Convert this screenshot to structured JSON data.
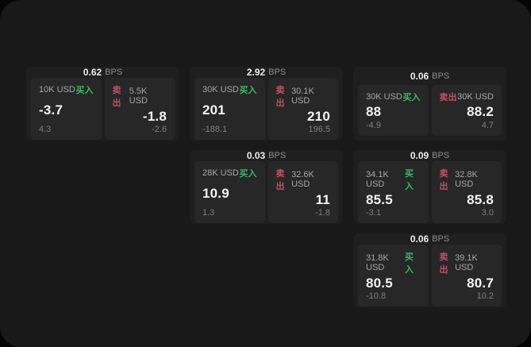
{
  "labels": {
    "bps_unit": "BPS",
    "buy": "买入",
    "sell": "卖出"
  },
  "colors": {
    "buy_green": "#3bb765",
    "sell_red": "#c05064",
    "page_bg": "#191919",
    "card_bg": "#1f1f1f",
    "panel_bg": "#272727"
  },
  "cards": [
    {
      "col": 1,
      "row": 1,
      "bps": "0.62",
      "buy": {
        "size": "10K USD",
        "value": "-3.7",
        "sub": "4.3"
      },
      "sell": {
        "size": "5.5K USD",
        "value": "-1.8",
        "sub": "-2.6"
      }
    },
    {
      "col": 2,
      "row": 1,
      "bps": "2.92",
      "buy": {
        "size": "30K USD",
        "value": "201",
        "sub": "-188.1"
      },
      "sell": {
        "size": "30.1K USD",
        "value": "210",
        "sub": "196.5"
      }
    },
    {
      "col": 3,
      "row": 1,
      "bps": "0.06",
      "buy": {
        "size": "30K USD",
        "value": "88",
        "sub": "-4.9"
      },
      "sell": {
        "size": "30K USD",
        "value": "88.2",
        "sub": "4.7"
      }
    },
    {
      "col": 2,
      "row": 2,
      "bps": "0.03",
      "buy": {
        "size": "28K USD",
        "value": "10.9",
        "sub": "1.3"
      },
      "sell": {
        "size": "32.6K USD",
        "value": "11",
        "sub": "-1.8"
      }
    },
    {
      "col": 3,
      "row": 2,
      "bps": "0.09",
      "buy": {
        "size": "34.1K USD",
        "value": "85.5",
        "sub": "-3.1"
      },
      "sell": {
        "size": "32.8K USD",
        "value": "85.8",
        "sub": "3.0"
      }
    },
    {
      "col": 3,
      "row": 3,
      "bps": "0.06",
      "buy": {
        "size": "31.8K USD",
        "value": "80.5",
        "sub": "-10.8"
      },
      "sell": {
        "size": "39.1K USD",
        "value": "80.7",
        "sub": "10.2"
      }
    }
  ]
}
